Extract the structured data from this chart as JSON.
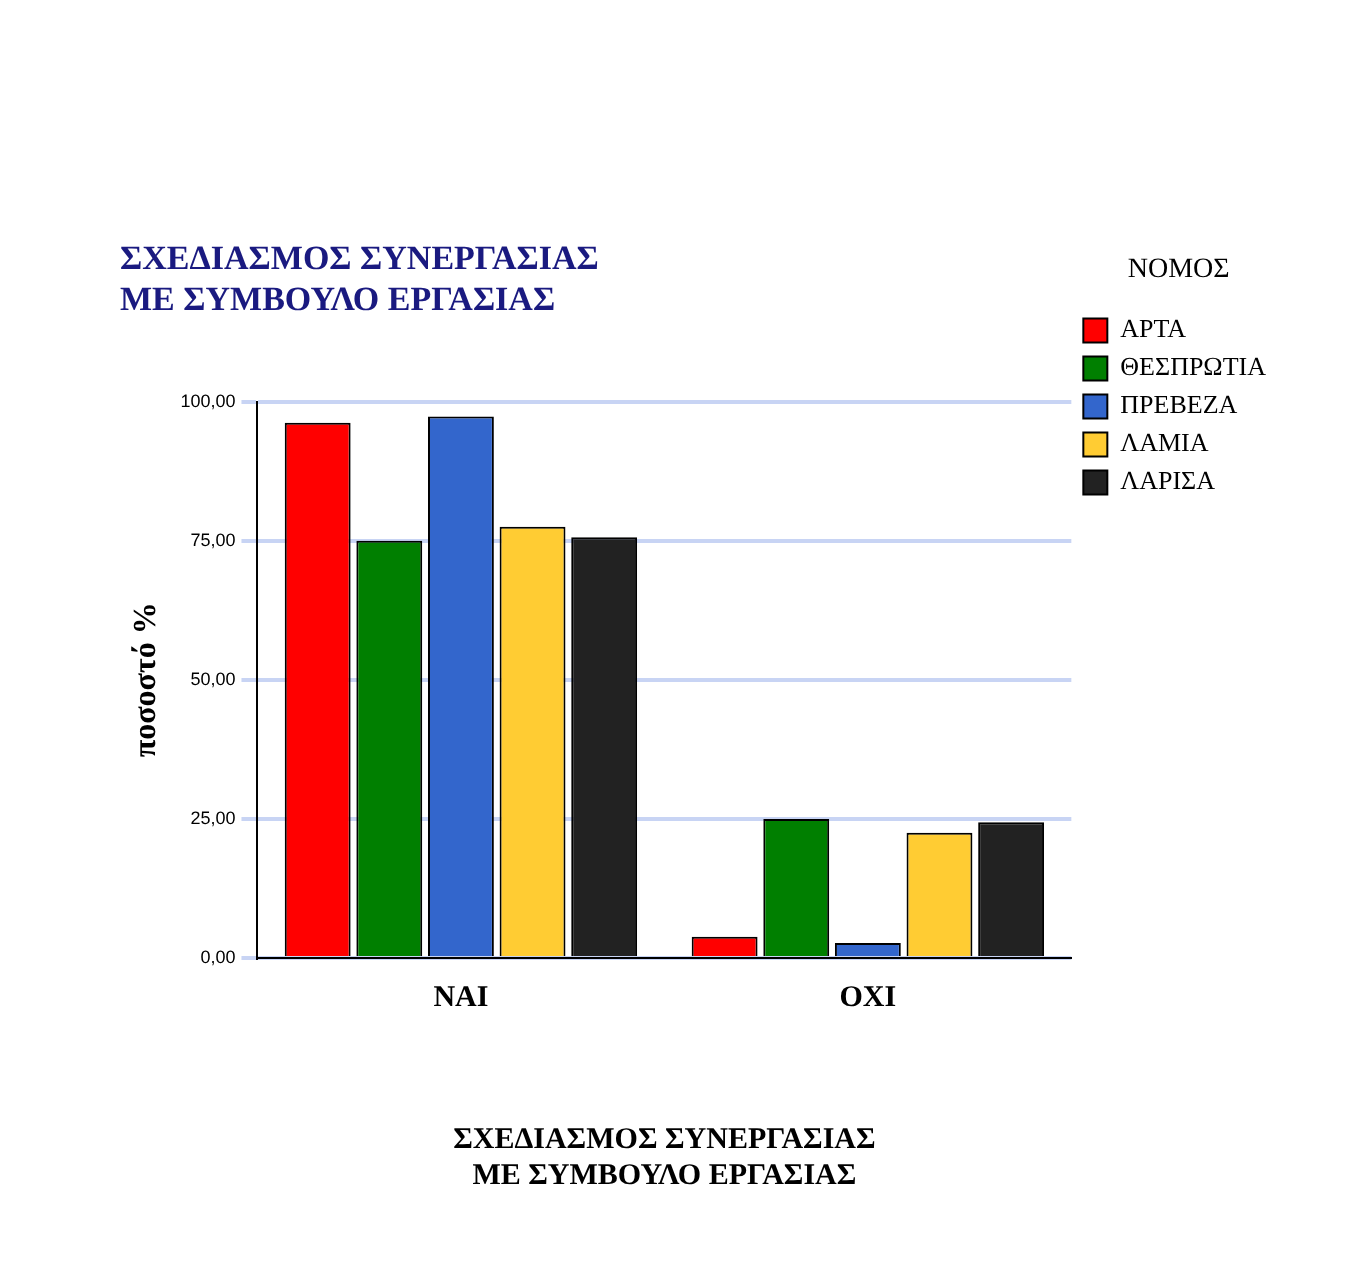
{
  "chart_data": {
    "type": "bar",
    "title": "ΣΧΕΔΙΑΣΜΟΣ ΣΥΝΕΡΓΑΣΙΑΣ\nΜΕ ΣΥΜΒΟΥΛΟ ΕΡΓΑΣΙΑΣ",
    "xlabel": "ΣΧΕΔΙΑΣΜΟΣ ΣΥΝΕΡΓΑΣΙΑΣ\nΜΕ ΣΥΜΒΟΥΛΟ ΕΡΓΑΣΙΑΣ",
    "ylabel": "ποσοστό %",
    "legend_title": "ΝΟΜΟΣ",
    "categories": [
      "ΝΑΙ",
      "ΟΧΙ"
    ],
    "series": [
      {
        "name": "ΑΡΤΑ",
        "color": "#ff0000",
        "values": [
          96.2,
          3.8
        ]
      },
      {
        "name": "ΘΕΣΠΡΩΤΙΑ",
        "color": "#007f00",
        "values": [
          75,
          25
        ]
      },
      {
        "name": "ΠΡΕΒΕΖΑ",
        "color": "#3366cc",
        "values": [
          97.3,
          2.7
        ]
      },
      {
        "name": "ΛΑΜΙΑ",
        "color": "#ffcc33",
        "values": [
          77.5,
          22.5
        ]
      },
      {
        "name": "ΛΑΡΙΣΑ",
        "color": "#222222",
        "values": [
          75.6,
          24.4
        ]
      }
    ],
    "ylim": [
      0,
      100
    ],
    "yticks": [
      {
        "value": 0,
        "label": "0,00"
      },
      {
        "value": 25,
        "label": "25,00"
      },
      {
        "value": 50,
        "label": "50,00"
      },
      {
        "value": 75,
        "label": "75,00"
      },
      {
        "value": 100,
        "label": "100,00"
      }
    ],
    "grid": "y",
    "legend": "right"
  }
}
